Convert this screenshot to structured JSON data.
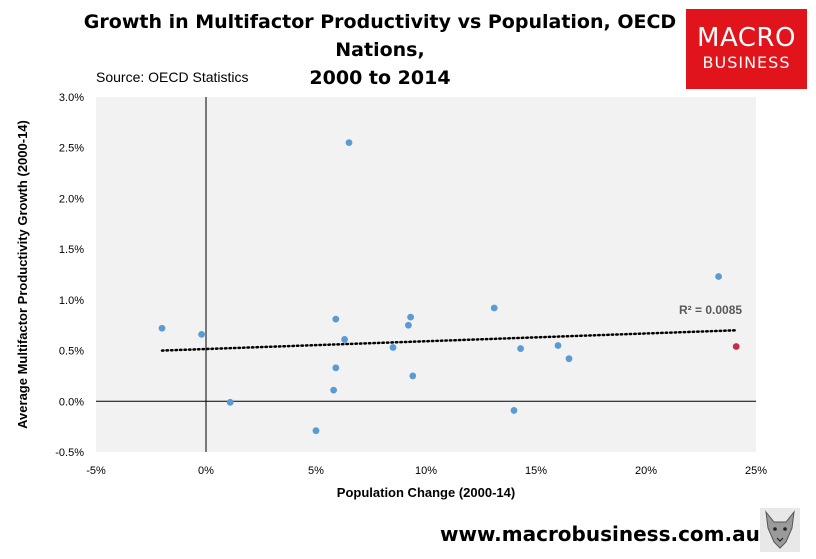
{
  "title_line1": "Growth in Multifactor Productivity vs Population, OECD Nations,",
  "title_line2": "2000 to 2014",
  "source": "Source: OECD Statistics",
  "logo": {
    "line1": "MACRO",
    "line2": "BUSINESS",
    "color": "#e0141a"
  },
  "footer_url": "www.macrobusiness.com.au",
  "colors": {
    "point": "#5b9bd5",
    "highlight": "#c0304a",
    "plot_bg": "#f2f2f2"
  },
  "chart_data": {
    "type": "scatter",
    "xlabel": "Population Change (2000-14)",
    "ylabel": "Average Multifactor Productivity Growth (2000-14)",
    "xlim": [
      -0.05,
      0.25
    ],
    "ylim": [
      -0.005,
      0.03
    ],
    "xticks": [
      -0.05,
      0,
      0.05,
      0.1,
      0.15,
      0.2,
      0.25
    ],
    "xtick_labels": [
      "-5%",
      "0%",
      "5%",
      "10%",
      "15%",
      "20%",
      "25%"
    ],
    "yticks": [
      -0.005,
      0,
      0.005,
      0.01,
      0.015,
      0.02,
      0.025,
      0.03
    ],
    "ytick_labels": [
      "-0.5%",
      "0.0%",
      "0.5%",
      "1.0%",
      "1.5%",
      "2.0%",
      "2.5%",
      "3.0%"
    ],
    "grid": false,
    "points": [
      {
        "x": -0.02,
        "y": 0.0072
      },
      {
        "x": -0.002,
        "y": 0.0066
      },
      {
        "x": 0.011,
        "y": -0.0001
      },
      {
        "x": 0.05,
        "y": -0.0029
      },
      {
        "x": 0.058,
        "y": 0.0011
      },
      {
        "x": 0.059,
        "y": 0.0033
      },
      {
        "x": 0.059,
        "y": 0.0081
      },
      {
        "x": 0.063,
        "y": 0.0061
      },
      {
        "x": 0.065,
        "y": 0.0255
      },
      {
        "x": 0.085,
        "y": 0.0053
      },
      {
        "x": 0.092,
        "y": 0.0075
      },
      {
        "x": 0.093,
        "y": 0.0083
      },
      {
        "x": 0.094,
        "y": 0.0025
      },
      {
        "x": 0.131,
        "y": 0.0092
      },
      {
        "x": 0.14,
        "y": -0.0009
      },
      {
        "x": 0.143,
        "y": 0.0052
      },
      {
        "x": 0.16,
        "y": 0.0055
      },
      {
        "x": 0.165,
        "y": 0.0042
      },
      {
        "x": 0.233,
        "y": 0.0123
      },
      {
        "x": 0.241,
        "y": 0.0054,
        "highlight": true
      }
    ],
    "trendline": {
      "x": [
        -0.02,
        0.241
      ],
      "y": [
        0.005,
        0.007
      ],
      "style": "dotted"
    },
    "r_squared_label": "R² = 0.0085"
  }
}
